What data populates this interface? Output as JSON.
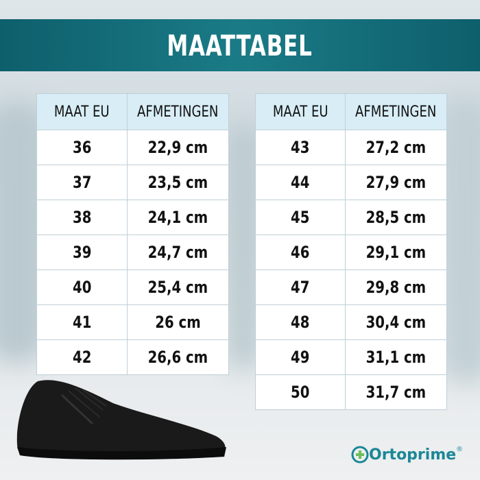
{
  "header": {
    "title": "MAATTABEL"
  },
  "tables": [
    {
      "headers": [
        "MAAT EU",
        "AFMETINGEN"
      ],
      "rows": [
        [
          "36",
          "22,9 cm"
        ],
        [
          "37",
          "23,5 cm"
        ],
        [
          "38",
          "24,1 cm"
        ],
        [
          "39",
          "24,7 cm"
        ],
        [
          "40",
          "25,4 cm"
        ],
        [
          "41",
          "26 cm"
        ],
        [
          "42",
          "26,6 cm"
        ]
      ]
    },
    {
      "headers": [
        "MAAT EU",
        "AFMETINGEN"
      ],
      "rows": [
        [
          "43",
          "27,2 cm"
        ],
        [
          "44",
          "27,9 cm"
        ],
        [
          "45",
          "28,5 cm"
        ],
        [
          "46",
          "29,1 cm"
        ],
        [
          "47",
          "29,8 cm"
        ],
        [
          "48",
          "30,4 cm"
        ],
        [
          "49",
          "31,1 cm"
        ],
        [
          "50",
          "31,7 cm"
        ]
      ]
    }
  ],
  "logo": {
    "name": "Ortoprime",
    "registered": "®"
  }
}
